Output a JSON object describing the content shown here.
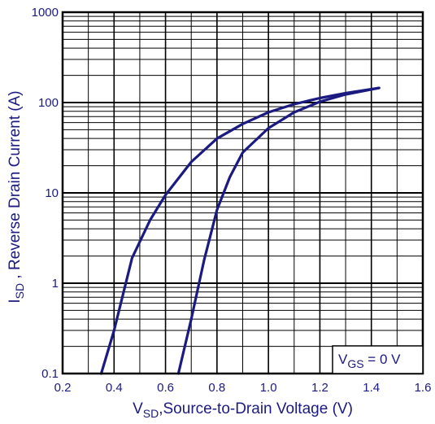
{
  "chart_data": {
    "type": "line",
    "x_scale": "linear",
    "y_scale": "log",
    "xlim": [
      0.2,
      1.6
    ],
    "ylim": [
      0.1,
      1000
    ],
    "x_ticks": [
      0.2,
      0.4,
      0.6,
      0.8,
      1.0,
      1.2,
      1.4,
      1.6
    ],
    "x_tick_labels": [
      "0.2",
      "0.4",
      "0.6",
      "0.8",
      "1.0",
      "1.2",
      "1.4",
      "1.6"
    ],
    "y_ticks": [
      0.1,
      1,
      10,
      100,
      1000
    ],
    "y_tick_labels": [
      "0.1",
      "1",
      "10",
      "100",
      "1000"
    ],
    "xlabel": {
      "main": "V",
      "sub": "SD",
      "rest": ",Source-to-Drain Voltage (V)"
    },
    "ylabel": {
      "main": "I",
      "sub": "SD",
      "rest": " , Reverse Drain Current (A)"
    },
    "legend": {
      "main": "V",
      "sub": "GS",
      "rest": " = 0 V",
      "position": "bottom-right"
    },
    "grid": true,
    "colors": {
      "curve": "#1a1a80",
      "grid": "#000000",
      "text": "#1a1a80"
    },
    "series": [
      {
        "x": [
          0.35,
          0.4,
          0.47,
          0.54,
          0.6,
          0.7,
          0.8,
          0.9,
          1.0,
          1.1,
          1.2,
          1.3,
          1.43
        ],
        "y": [
          0.1,
          0.3,
          1.9,
          5.0,
          9.5,
          22,
          40,
          58,
          78,
          96,
          112,
          127,
          145
        ]
      },
      {
        "x": [
          0.65,
          0.7,
          0.75,
          0.8,
          0.85,
          0.9,
          1.0,
          1.1,
          1.2,
          1.3,
          1.43
        ],
        "y": [
          0.1,
          0.4,
          1.8,
          6.5,
          15,
          28,
          52,
          78,
          102,
          123,
          145
        ]
      }
    ]
  }
}
